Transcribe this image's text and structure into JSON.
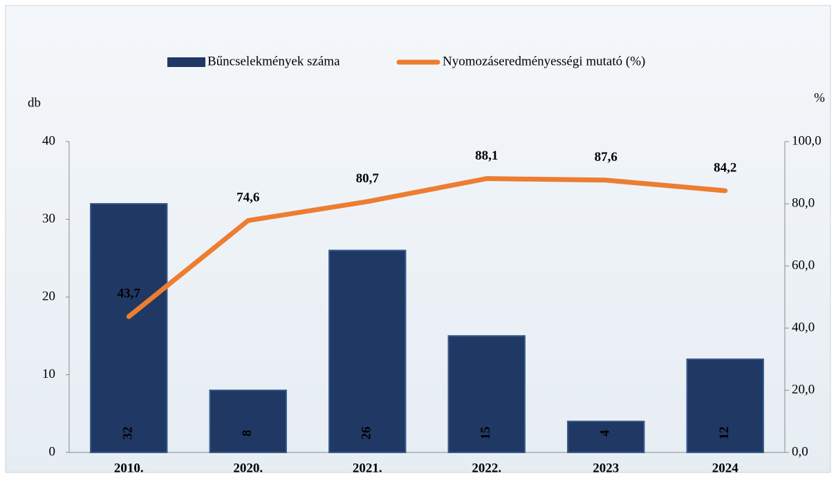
{
  "chart_data": {
    "type": "bar",
    "categories": [
      "2010.",
      "2020.",
      "2021.",
      "2022.",
      "2023",
      "2024"
    ],
    "series": [
      {
        "name": "Bűncselekmények száma",
        "type": "bar",
        "color": "#1f3864",
        "values": [
          32,
          8,
          26,
          15,
          4,
          12
        ]
      },
      {
        "name": "Nyomozáseredményességi mutató (%)",
        "type": "line",
        "axis": "y2",
        "color": "#ed7d31",
        "values": [
          43.7,
          74.6,
          80.7,
          88.1,
          87.6,
          84.2
        ],
        "value_labels": [
          "43,7",
          "74,6",
          "80,7",
          "88,1",
          "87,6",
          "84,2"
        ]
      }
    ],
    "y_label": "db",
    "y2_label": "%",
    "ylim": [
      0,
      40
    ],
    "yticks": [
      0,
      10,
      20,
      30,
      40
    ],
    "y2lim": [
      0,
      100
    ],
    "y2ticks": [
      {
        "value": 0,
        "label": "0,0"
      },
      {
        "value": 20,
        "label": "20,0"
      },
      {
        "value": 40,
        "label": "40,0"
      },
      {
        "value": 60,
        "label": "60,0"
      },
      {
        "value": 80,
        "label": "80,0"
      },
      {
        "value": 100,
        "label": "100,0"
      }
    ],
    "legend": "top",
    "grid": false
  }
}
